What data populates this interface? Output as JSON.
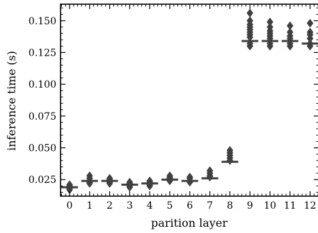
{
  "chart_data": {
    "type": "box",
    "xlabel": "parition layer",
    "ylabel": "inference time (s)",
    "categories": [
      "0",
      "1",
      "2",
      "3",
      "4",
      "5",
      "6",
      "7",
      "8",
      "9",
      "10",
      "11",
      "12"
    ],
    "ylim": [
      0.012,
      0.163
    ],
    "yticks": [
      0.025,
      0.05,
      0.075,
      0.1,
      0.125,
      0.15
    ],
    "ytick_labels": [
      "0.025",
      "0.050",
      "0.075",
      "0.100",
      "0.125",
      "0.150"
    ],
    "medians": [
      0.019,
      0.024,
      0.024,
      0.021,
      0.022,
      0.025,
      0.024,
      0.026,
      0.039,
      0.134,
      0.134,
      0.134,
      0.132
    ],
    "outliers": [
      [
        0.017,
        0.018,
        0.019,
        0.02,
        0.021
      ],
      [
        0.022,
        0.023,
        0.024,
        0.026,
        0.028
      ],
      [
        0.022,
        0.023,
        0.025,
        0.026
      ],
      [
        0.019,
        0.02,
        0.022,
        0.023
      ],
      [
        0.02,
        0.021,
        0.023,
        0.024
      ],
      [
        0.024,
        0.025,
        0.026,
        0.027,
        0.028
      ],
      [
        0.023,
        0.024,
        0.026,
        0.027
      ],
      [
        0.027,
        0.028,
        0.03,
        0.032
      ],
      [
        0.04,
        0.042,
        0.044,
        0.046,
        0.048
      ],
      [
        0.13,
        0.132,
        0.137,
        0.139,
        0.141,
        0.143,
        0.145,
        0.147,
        0.15,
        0.156
      ],
      [
        0.13,
        0.132,
        0.136,
        0.138,
        0.14,
        0.142,
        0.145,
        0.149
      ],
      [
        0.13,
        0.132,
        0.136,
        0.138,
        0.141,
        0.146
      ],
      [
        0.13,
        0.132,
        0.136,
        0.139,
        0.141,
        0.148
      ]
    ],
    "color": "#404040",
    "grid": false
  }
}
